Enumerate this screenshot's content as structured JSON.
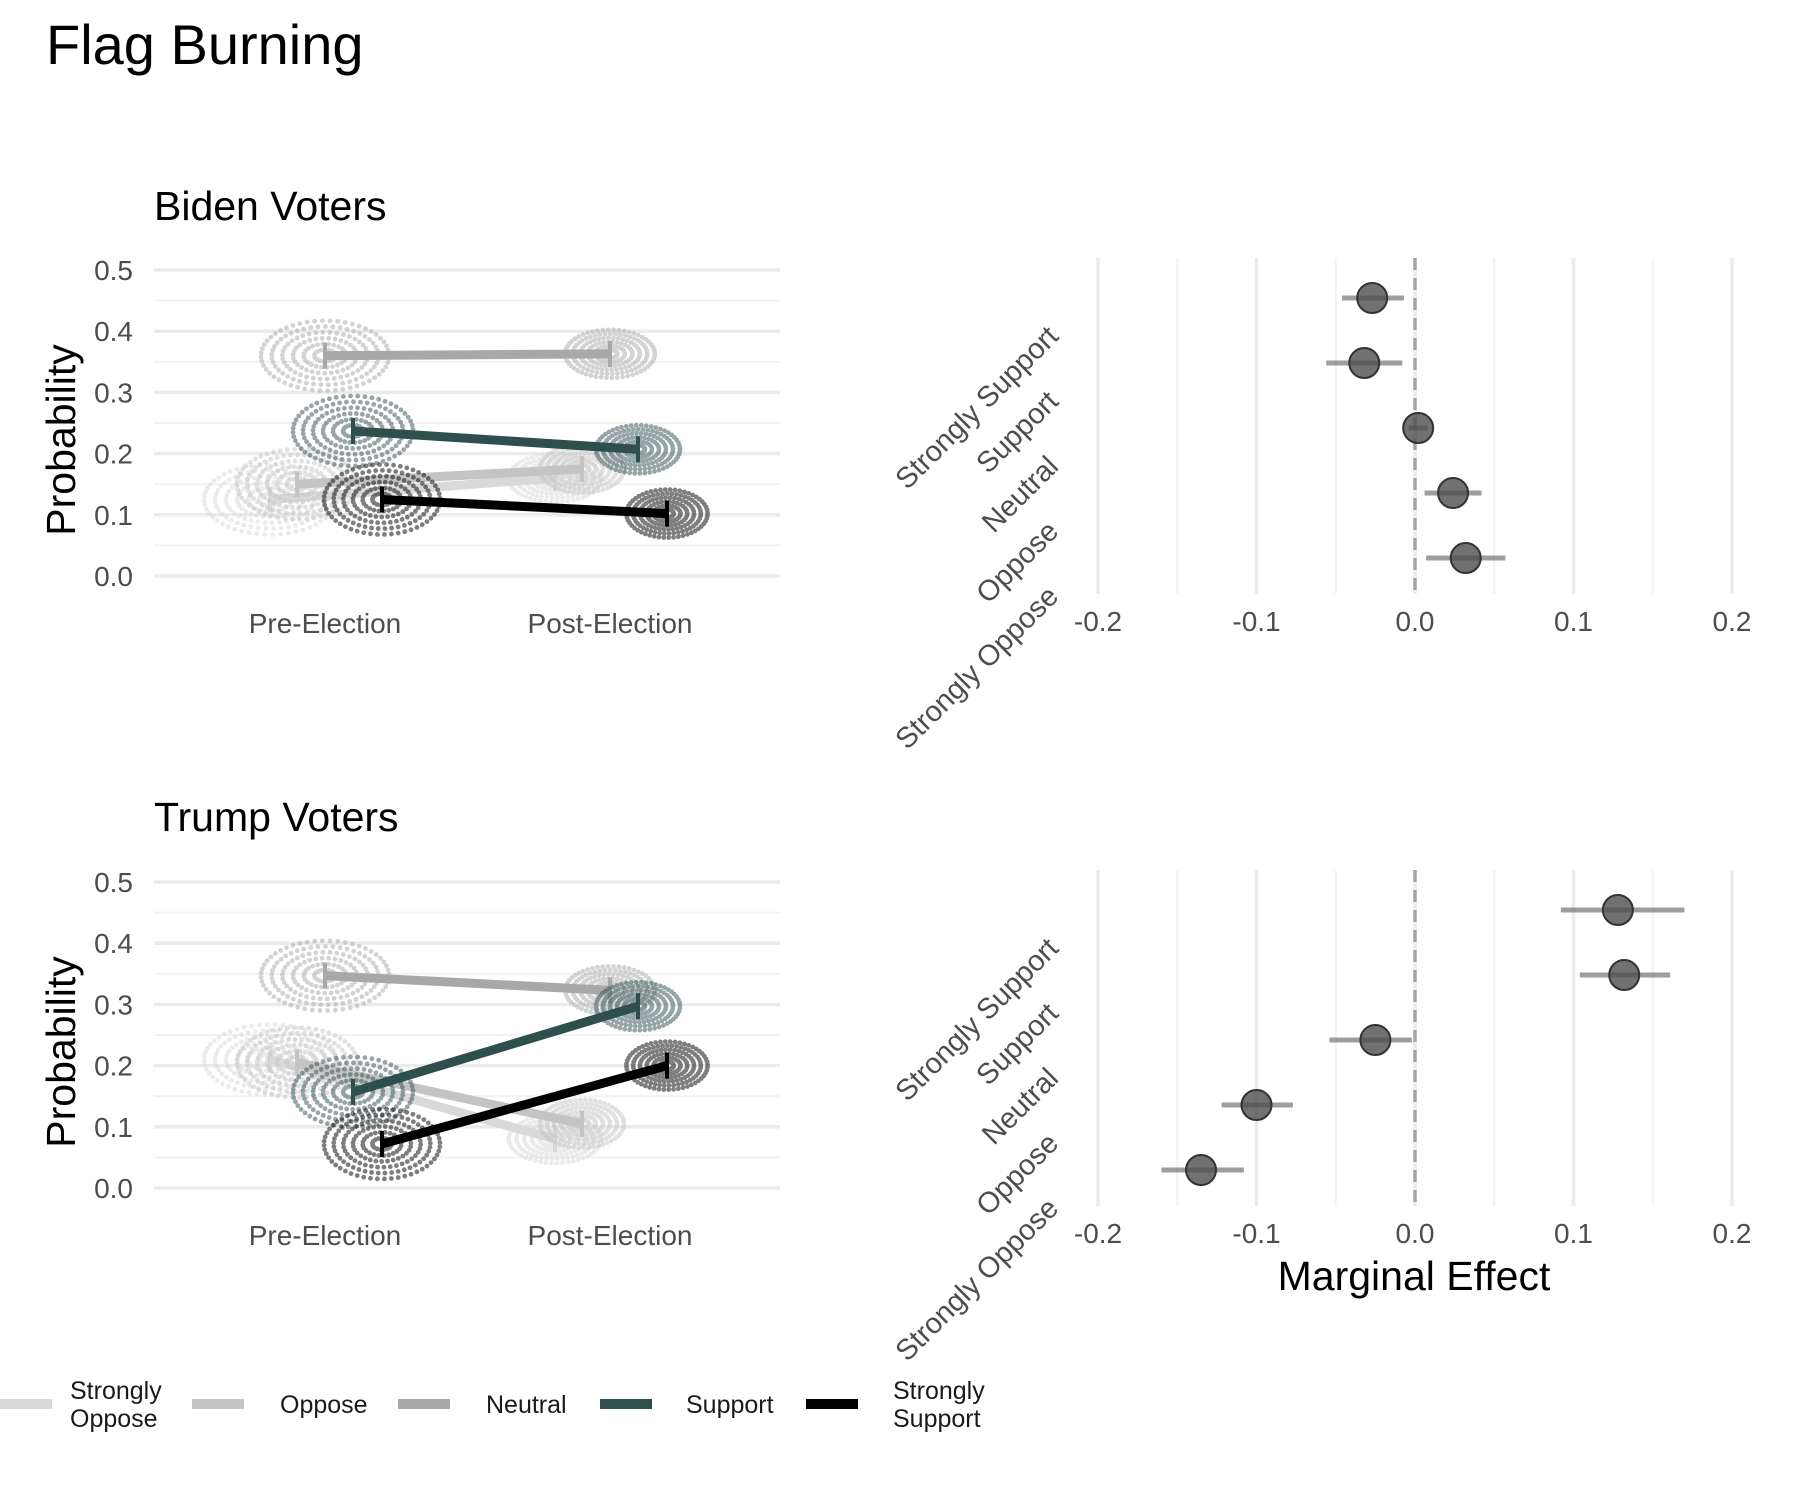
{
  "title": "Flag Burning",
  "colors": {
    "Strongly Oppose": "#d9d9d9",
    "Oppose": "#c4c4c4",
    "Neutral": "#a8a8a8",
    "Support": "#2f4f4f",
    "Strongly Support": "#000000",
    "point": "#4d4d4d",
    "zero_line": "#a6a6a6"
  },
  "legend": {
    "entries": [
      {
        "key": "Strongly Oppose",
        "lines": [
          "Strongly",
          "Oppose"
        ]
      },
      {
        "key": "Oppose",
        "lines": [
          "Oppose"
        ]
      },
      {
        "key": "Neutral",
        "lines": [
          "Neutral"
        ]
      },
      {
        "key": "Support",
        "lines": [
          "Support"
        ]
      },
      {
        "key": "Strongly Support",
        "lines": [
          "Strongly",
          "Support"
        ]
      }
    ],
    "placement": "bottom"
  },
  "chart_data": [
    {
      "type": "line",
      "panel": "Biden Voters",
      "ylabel": "Probability",
      "xlabel": "",
      "categories": [
        "Pre-Election",
        "Post-Election"
      ],
      "ylim": [
        0,
        0.5
      ],
      "yticks": [
        "0.0",
        "0.1",
        "0.2",
        "0.3",
        "0.4",
        "0.5"
      ],
      "series": [
        {
          "name": "Strongly Oppose",
          "values": [
            0.125,
            0.16
          ]
        },
        {
          "name": "Oppose",
          "values": [
            0.15,
            0.175
          ]
        },
        {
          "name": "Neutral",
          "values": [
            0.36,
            0.363
          ]
        },
        {
          "name": "Support",
          "values": [
            0.237,
            0.207
          ]
        },
        {
          "name": "Strongly Support",
          "values": [
            0.125,
            0.102
          ]
        }
      ]
    },
    {
      "type": "scatter",
      "panel": "Biden Voters marginal effects",
      "xlabel": "",
      "ylabel": "",
      "xlim": [
        -0.2,
        0.2
      ],
      "xticks": [
        "-0.2",
        "-0.1",
        "0.0",
        "0.1",
        "0.2"
      ],
      "categories": [
        "Strongly Support",
        "Support",
        "Neutral",
        "Oppose",
        "Strongly Oppose"
      ],
      "values": [
        -0.027,
        -0.032,
        0.002,
        0.024,
        0.032
      ],
      "ci_low": [
        -0.046,
        -0.056,
        -0.004,
        0.006,
        0.007
      ],
      "ci_high": [
        -0.007,
        -0.008,
        0.008,
        0.042,
        0.057
      ]
    },
    {
      "type": "line",
      "panel": "Trump Voters",
      "ylabel": "Probability",
      "xlabel": "",
      "categories": [
        "Pre-Election",
        "Post-Election"
      ],
      "ylim": [
        0,
        0.5
      ],
      "yticks": [
        "0.0",
        "0.1",
        "0.2",
        "0.3",
        "0.4",
        "0.5"
      ],
      "series": [
        {
          "name": "Strongly Oppose",
          "values": [
            0.21,
            0.08
          ]
        },
        {
          "name": "Oppose",
          "values": [
            0.205,
            0.105
          ]
        },
        {
          "name": "Neutral",
          "values": [
            0.347,
            0.323
          ]
        },
        {
          "name": "Support",
          "values": [
            0.157,
            0.297
          ]
        },
        {
          "name": "Strongly Support",
          "values": [
            0.072,
            0.2
          ]
        }
      ]
    },
    {
      "type": "scatter",
      "panel": "Trump Voters marginal effects",
      "xlabel": "Marginal Effect",
      "ylabel": "",
      "xlim": [
        -0.2,
        0.2
      ],
      "xticks": [
        "-0.2",
        "-0.1",
        "0.0",
        "0.1",
        "0.2"
      ],
      "categories": [
        "Strongly Support",
        "Support",
        "Neutral",
        "Oppose",
        "Strongly Oppose"
      ],
      "values": [
        0.128,
        0.132,
        -0.025,
        -0.1,
        -0.135
      ],
      "ci_low": [
        0.092,
        0.104,
        -0.054,
        -0.122,
        -0.16
      ],
      "ci_high": [
        0.17,
        0.161,
        -0.002,
        -0.077,
        -0.108
      ]
    }
  ]
}
